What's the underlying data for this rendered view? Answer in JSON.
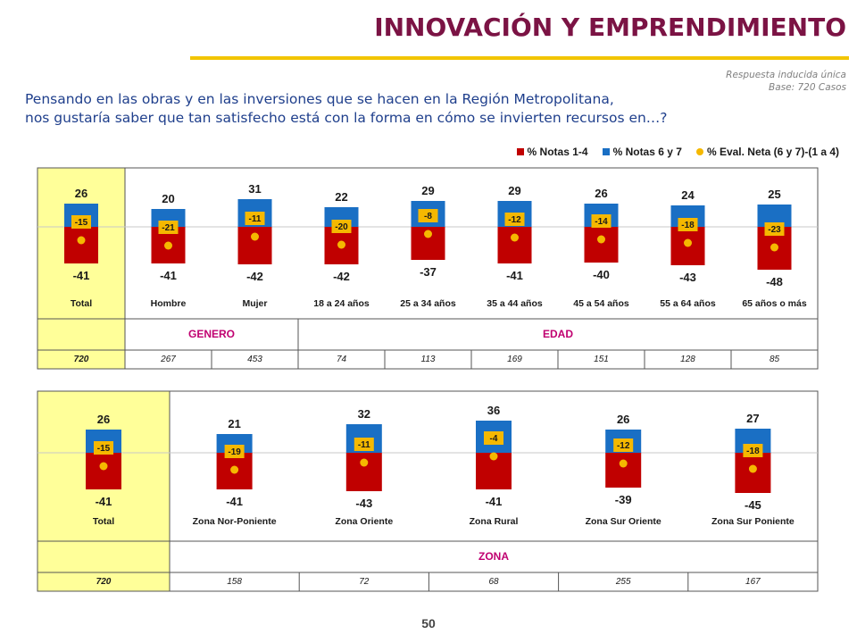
{
  "header": {
    "title": "INNOVACIÓN Y EMPRENDIMIENTO",
    "note_line1": "Respuesta inducida única",
    "note_line2": "Base: 720 Casos"
  },
  "question": {
    "line1": "Pensando en las obras y en las inversiones que se hacen en la Región Metropolitana,",
    "line2": "nos gustaría saber que tan satisfecho está con la forma en cómo se invierten recursos en…?"
  },
  "legend": [
    {
      "label": "% Notas 1-4",
      "color": "#c00000"
    },
    {
      "label": "% Notas 6 y 7",
      "color": "#1a6fc4"
    },
    {
      "label": "% Eval. Neta (6 y 7)-(1 a 4)",
      "color": "#f5b800"
    }
  ],
  "colors": {
    "neg": "#c00000",
    "pos": "#1a6fc4",
    "dot": "#f5b800",
    "highlight": "#ffff99",
    "group": "#c00070"
  },
  "page_number": "50",
  "chart_data": [
    {
      "type": "bar",
      "stacking": "diverging",
      "categories": [
        "Total",
        "Hombre",
        "Mujer",
        "18 a 24 años",
        "25 a 34 años",
        "35 a 44 años",
        "45 a 54 años",
        "55 a 64 años",
        "65 años o más"
      ],
      "series": [
        {
          "name": "% Notas 1-4",
          "values": [
            -41,
            -41,
            -42,
            -42,
            -37,
            -41,
            -40,
            -43,
            -48
          ]
        },
        {
          "name": "% Notas 6 y 7",
          "values": [
            26,
            20,
            31,
            22,
            29,
            29,
            26,
            24,
            25
          ]
        },
        {
          "name": "% Eval. Neta (6 y 7)-(1 a 4)",
          "values": [
            -15,
            -21,
            -11,
            -20,
            -8,
            -12,
            -14,
            -18,
            -23
          ]
        }
      ],
      "groups": [
        {
          "label": "GENERO"
        },
        {
          "label": "EDAD"
        }
      ],
      "bases": [
        "720",
        "267",
        "453",
        "74",
        "113",
        "169",
        "151",
        "128",
        "85"
      ],
      "legend_position": "top-right"
    },
    {
      "type": "bar",
      "stacking": "diverging",
      "categories": [
        "Total",
        "Zona Nor-Poniente",
        "Zona Oriente",
        "Zona Rural",
        "Zona Sur Oriente",
        "Zona Sur Poniente"
      ],
      "series": [
        {
          "name": "% Notas 1-4",
          "values": [
            -41,
            -41,
            -43,
            -41,
            -39,
            -45
          ]
        },
        {
          "name": "% Notas 6 y 7",
          "values": [
            26,
            21,
            32,
            36,
            26,
            27
          ]
        },
        {
          "name": "% Eval. Neta (6 y 7)-(1 a 4)",
          "values": [
            -15,
            -19,
            -11,
            -4,
            -12,
            -18
          ]
        }
      ],
      "groups": [
        {
          "label": "ZONA"
        }
      ],
      "bases": [
        "720",
        "158",
        "72",
        "68",
        "255",
        "167"
      ]
    }
  ]
}
